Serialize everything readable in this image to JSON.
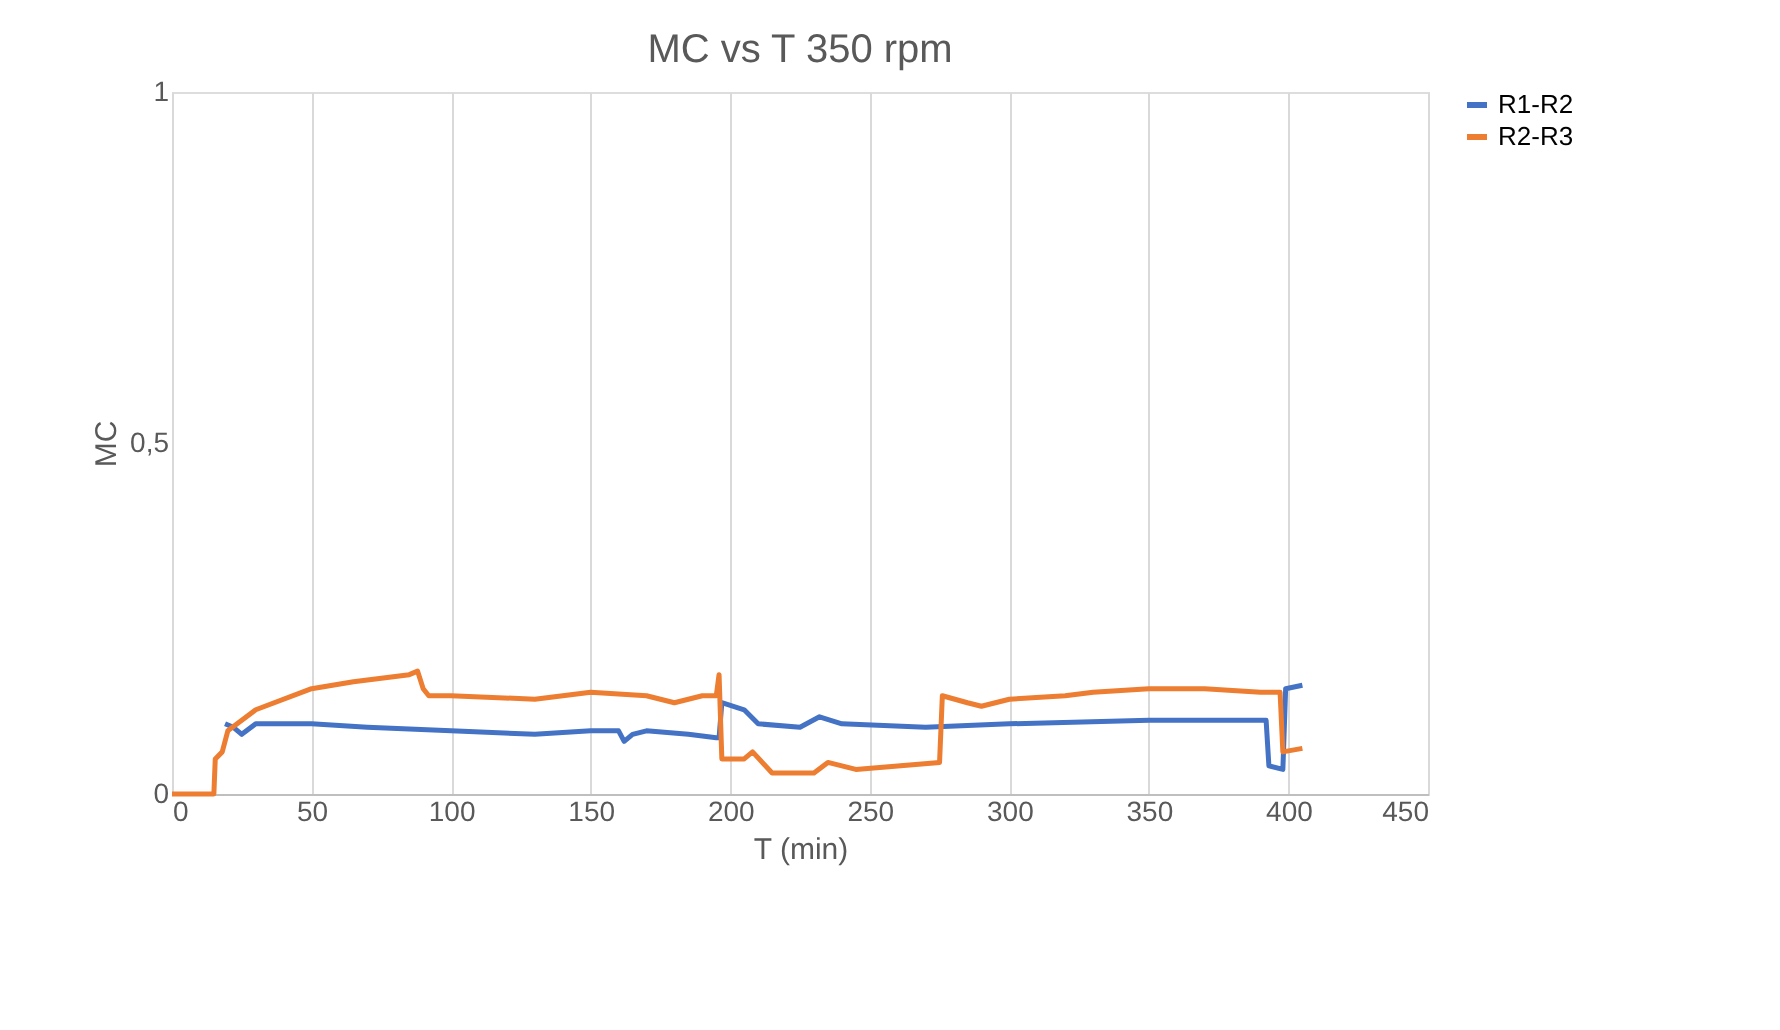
{
  "chart_data": {
    "type": "line",
    "title": "MC vs T 350 rpm",
    "xlabel": "T (min)",
    "ylabel": "MC",
    "xlim": [
      0,
      450
    ],
    "xticks": [
      0,
      50,
      100,
      150,
      200,
      250,
      300,
      350,
      400,
      450
    ],
    "ylim": [
      0,
      1
    ],
    "yticks": [
      0,
      {
        "value": 0.5,
        "label": "0,5"
      },
      1
    ],
    "grid": "x",
    "legend": "right",
    "line_style": "solid",
    "marker": "none",
    "series": [
      {
        "name": "R1-R2",
        "color": "#4472c4",
        "x": [
          19,
          22,
          25,
          30,
          50,
          70,
          100,
          130,
          150,
          160,
          162,
          165,
          170,
          185,
          195,
          196,
          197,
          205,
          210,
          225,
          232,
          240,
          270,
          300,
          350,
          392,
          393,
          398,
          399,
          405
        ],
        "values": [
          0.1,
          0.095,
          0.085,
          0.1,
          0.1,
          0.095,
          0.09,
          0.085,
          0.09,
          0.09,
          0.075,
          0.085,
          0.09,
          0.085,
          0.08,
          0.08,
          0.13,
          0.12,
          0.1,
          0.095,
          0.11,
          0.1,
          0.095,
          0.1,
          0.105,
          0.105,
          0.04,
          0.035,
          0.15,
          0.155
        ]
      },
      {
        "name": "R2-R3",
        "color": "#ed7d31",
        "x": [
          0,
          15,
          15.5,
          18,
          20,
          30,
          50,
          65,
          85,
          88,
          90,
          92,
          100,
          130,
          150,
          170,
          180,
          190,
          195,
          196,
          197,
          205,
          208,
          215,
          230,
          235,
          245,
          260,
          275,
          276,
          285,
          290,
          300,
          320,
          330,
          350,
          370,
          390,
          397,
          398,
          405
        ],
        "values": [
          0,
          0,
          0.05,
          0.06,
          0.09,
          0.12,
          0.15,
          0.16,
          0.17,
          0.175,
          0.15,
          0.14,
          0.14,
          0.135,
          0.145,
          0.14,
          0.13,
          0.14,
          0.14,
          0.17,
          0.05,
          0.05,
          0.06,
          0.03,
          0.03,
          0.045,
          0.035,
          0.04,
          0.045,
          0.14,
          0.13,
          0.125,
          0.135,
          0.14,
          0.145,
          0.15,
          0.15,
          0.145,
          0.145,
          0.06,
          0.065
        ]
      }
    ]
  }
}
